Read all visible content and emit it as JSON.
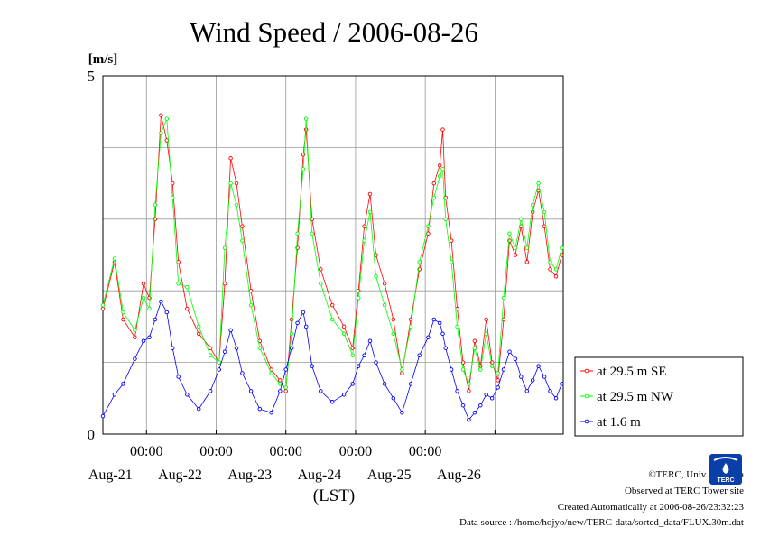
{
  "chart_data": {
    "type": "line",
    "title": "Wind Speed / 2006-08-26",
    "ylabel": "[m/s]",
    "xlabel": "(LST)",
    "ylim": [
      0,
      5
    ],
    "ytick_labels": [
      "0",
      "5"
    ],
    "xlim": [
      "2006-08-20T09:00",
      "2006-08-26T23:30"
    ],
    "x_ticks": [
      {
        "time": "2006-08-21T00:00",
        "label": "00:00",
        "date": "Aug-21"
      },
      {
        "time": "2006-08-22T00:00",
        "label": "00:00",
        "date": "Aug-22"
      },
      {
        "time": "2006-08-23T00:00",
        "label": "00:00",
        "date": "Aug-23"
      },
      {
        "time": "2006-08-24T00:00",
        "label": "00:00",
        "date": "Aug-24"
      },
      {
        "time": "2006-08-25T00:00",
        "label": "00:00",
        "date": "Aug-25"
      },
      {
        "time": "2006-08-26T00:00",
        "label": "",
        "date": "Aug-26"
      }
    ],
    "grid": true,
    "legend_position": "right, lower",
    "series": [
      {
        "name": "at 29.5 m SE",
        "color": "#ff0000",
        "points": [
          [
            "2006-08-20T09:00",
            1.75
          ],
          [
            "2006-08-20T13:00",
            2.4
          ],
          [
            "2006-08-20T16:00",
            1.6
          ],
          [
            "2006-08-20T20:00",
            1.35
          ],
          [
            "2006-08-20T23:00",
            2.1
          ],
          [
            "2006-08-21T01:00",
            1.9
          ],
          [
            "2006-08-21T03:00",
            3.0
          ],
          [
            "2006-08-21T05:00",
            4.45
          ],
          [
            "2006-08-21T07:00",
            4.1
          ],
          [
            "2006-08-21T09:00",
            3.5
          ],
          [
            "2006-08-21T11:00",
            2.4
          ],
          [
            "2006-08-21T14:00",
            1.75
          ],
          [
            "2006-08-21T18:00",
            1.4
          ],
          [
            "2006-08-21T22:00",
            1.2
          ],
          [
            "2006-08-22T01:00",
            1.0
          ],
          [
            "2006-08-22T03:00",
            2.1
          ],
          [
            "2006-08-22T05:00",
            3.85
          ],
          [
            "2006-08-22T07:00",
            3.5
          ],
          [
            "2006-08-22T09:00",
            2.9
          ],
          [
            "2006-08-22T12:00",
            2.0
          ],
          [
            "2006-08-22T15:00",
            1.3
          ],
          [
            "2006-08-22T19:00",
            0.9
          ],
          [
            "2006-08-22T22:00",
            0.75
          ],
          [
            "2006-08-23T00:00",
            0.6
          ],
          [
            "2006-08-23T02:00",
            1.6
          ],
          [
            "2006-08-23T04:00",
            2.6
          ],
          [
            "2006-08-23T06:00",
            3.9
          ],
          [
            "2006-08-23T07:00",
            4.25
          ],
          [
            "2006-08-23T09:00",
            3.0
          ],
          [
            "2006-08-23T12:00",
            2.3
          ],
          [
            "2006-08-23T16:00",
            1.8
          ],
          [
            "2006-08-23T20:00",
            1.5
          ],
          [
            "2006-08-23T23:00",
            1.2
          ],
          [
            "2006-08-24T01:00",
            2.0
          ],
          [
            "2006-08-24T03:00",
            2.9
          ],
          [
            "2006-08-24T05:00",
            3.35
          ],
          [
            "2006-08-24T07:00",
            2.5
          ],
          [
            "2006-08-24T10:00",
            2.1
          ],
          [
            "2006-08-24T13:00",
            1.6
          ],
          [
            "2006-08-24T16:00",
            0.85
          ],
          [
            "2006-08-24T19:00",
            1.6
          ],
          [
            "2006-08-24T22:00",
            2.3
          ],
          [
            "2006-08-25T01:00",
            2.8
          ],
          [
            "2006-08-25T03:00",
            3.5
          ],
          [
            "2006-08-25T05:00",
            3.75
          ],
          [
            "2006-08-25T06:00",
            4.25
          ],
          [
            "2006-08-25T07:00",
            3.3
          ],
          [
            "2006-08-25T09:00",
            2.7
          ],
          [
            "2006-08-25T11:00",
            1.75
          ],
          [
            "2006-08-25T13:00",
            1.0
          ],
          [
            "2006-08-25T15:00",
            0.6
          ],
          [
            "2006-08-25T17:00",
            1.3
          ],
          [
            "2006-08-25T19:00",
            0.95
          ],
          [
            "2006-08-25T21:00",
            1.6
          ],
          [
            "2006-08-25T23:00",
            1.0
          ],
          [
            "2006-08-26T01:00",
            0.75
          ],
          [
            "2006-08-26T03:00",
            1.6
          ],
          [
            "2006-08-26T05:00",
            2.7
          ],
          [
            "2006-08-26T07:00",
            2.5
          ],
          [
            "2006-08-26T09:00",
            2.9
          ],
          [
            "2006-08-26T11:00",
            2.4
          ],
          [
            "2006-08-26T13:00",
            3.1
          ],
          [
            "2006-08-26T15:00",
            3.4
          ],
          [
            "2006-08-26T17:00",
            2.9
          ],
          [
            "2006-08-26T19:00",
            2.3
          ],
          [
            "2006-08-26T21:00",
            2.2
          ],
          [
            "2006-08-26T23:00",
            2.5
          ]
        ]
      },
      {
        "name": "at 29.5 m NW",
        "color": "#00ff00",
        "points": [
          [
            "2006-08-20T09:00",
            1.8
          ],
          [
            "2006-08-20T13:00",
            2.45
          ],
          [
            "2006-08-20T16:00",
            1.7
          ],
          [
            "2006-08-20T20:00",
            1.45
          ],
          [
            "2006-08-20T23:00",
            1.9
          ],
          [
            "2006-08-21T01:00",
            1.75
          ],
          [
            "2006-08-21T03:00",
            3.2
          ],
          [
            "2006-08-21T05:00",
            4.2
          ],
          [
            "2006-08-21T07:00",
            4.4
          ],
          [
            "2006-08-21T09:00",
            3.3
          ],
          [
            "2006-08-21T11:00",
            2.1
          ],
          [
            "2006-08-21T14:00",
            2.05
          ],
          [
            "2006-08-21T18:00",
            1.5
          ],
          [
            "2006-08-21T22:00",
            1.1
          ],
          [
            "2006-08-22T01:00",
            1.0
          ],
          [
            "2006-08-22T03:00",
            2.6
          ],
          [
            "2006-08-22T05:00",
            3.5
          ],
          [
            "2006-08-22T07:00",
            3.2
          ],
          [
            "2006-08-22T09:00",
            2.7
          ],
          [
            "2006-08-22T12:00",
            1.8
          ],
          [
            "2006-08-22T15:00",
            1.2
          ],
          [
            "2006-08-22T19:00",
            0.85
          ],
          [
            "2006-08-22T22:00",
            0.7
          ],
          [
            "2006-08-23T00:00",
            0.65
          ],
          [
            "2006-08-23T02:00",
            1.4
          ],
          [
            "2006-08-23T04:00",
            2.8
          ],
          [
            "2006-08-23T06:00",
            3.7
          ],
          [
            "2006-08-23T07:00",
            4.4
          ],
          [
            "2006-08-23T09:00",
            2.8
          ],
          [
            "2006-08-23T12:00",
            2.1
          ],
          [
            "2006-08-23T16:00",
            1.6
          ],
          [
            "2006-08-23T20:00",
            1.4
          ],
          [
            "2006-08-23T23:00",
            1.1
          ],
          [
            "2006-08-24T01:00",
            1.9
          ],
          [
            "2006-08-24T03:00",
            2.7
          ],
          [
            "2006-08-24T05:00",
            3.1
          ],
          [
            "2006-08-24T07:00",
            2.2
          ],
          [
            "2006-08-24T10:00",
            1.8
          ],
          [
            "2006-08-24T13:00",
            1.4
          ],
          [
            "2006-08-24T16:00",
            0.9
          ],
          [
            "2006-08-24T19:00",
            1.5
          ],
          [
            "2006-08-24T22:00",
            2.4
          ],
          [
            "2006-08-25T01:00",
            2.9
          ],
          [
            "2006-08-25T03:00",
            3.3
          ],
          [
            "2006-08-25T05:00",
            3.6
          ],
          [
            "2006-08-25T06:00",
            3.7
          ],
          [
            "2006-08-25T07:00",
            3.0
          ],
          [
            "2006-08-25T09:00",
            2.4
          ],
          [
            "2006-08-25T11:00",
            1.5
          ],
          [
            "2006-08-25T13:00",
            0.9
          ],
          [
            "2006-08-25T15:00",
            0.7
          ],
          [
            "2006-08-25T17:00",
            1.2
          ],
          [
            "2006-08-25T19:00",
            0.9
          ],
          [
            "2006-08-25T21:00",
            1.4
          ],
          [
            "2006-08-25T23:00",
            0.95
          ],
          [
            "2006-08-26T01:00",
            0.85
          ],
          [
            "2006-08-26T03:00",
            1.9
          ],
          [
            "2006-08-26T05:00",
            2.8
          ],
          [
            "2006-08-26T07:00",
            2.6
          ],
          [
            "2006-08-26T09:00",
            3.0
          ],
          [
            "2006-08-26T11:00",
            2.6
          ],
          [
            "2006-08-26T13:00",
            3.2
          ],
          [
            "2006-08-26T15:00",
            3.5
          ],
          [
            "2006-08-26T17:00",
            3.1
          ],
          [
            "2006-08-26T19:00",
            2.4
          ],
          [
            "2006-08-26T21:00",
            2.3
          ],
          [
            "2006-08-26T23:00",
            2.6
          ]
        ]
      },
      {
        "name": "at 1.6 m",
        "color": "#0000ff",
        "points": [
          [
            "2006-08-20T09:00",
            0.25
          ],
          [
            "2006-08-20T13:00",
            0.55
          ],
          [
            "2006-08-20T16:00",
            0.7
          ],
          [
            "2006-08-20T20:00",
            1.05
          ],
          [
            "2006-08-20T23:00",
            1.3
          ],
          [
            "2006-08-21T01:00",
            1.35
          ],
          [
            "2006-08-21T03:00",
            1.6
          ],
          [
            "2006-08-21T05:00",
            1.85
          ],
          [
            "2006-08-21T07:00",
            1.7
          ],
          [
            "2006-08-21T09:00",
            1.2
          ],
          [
            "2006-08-21T11:00",
            0.8
          ],
          [
            "2006-08-21T14:00",
            0.55
          ],
          [
            "2006-08-21T18:00",
            0.35
          ],
          [
            "2006-08-21T22:00",
            0.6
          ],
          [
            "2006-08-22T01:00",
            0.9
          ],
          [
            "2006-08-22T03:00",
            1.15
          ],
          [
            "2006-08-22T05:00",
            1.45
          ],
          [
            "2006-08-22T07:00",
            1.2
          ],
          [
            "2006-08-22T09:00",
            0.85
          ],
          [
            "2006-08-22T12:00",
            0.6
          ],
          [
            "2006-08-22T15:00",
            0.35
          ],
          [
            "2006-08-22T19:00",
            0.3
          ],
          [
            "2006-08-22T22:00",
            0.6
          ],
          [
            "2006-08-23T00:00",
            0.9
          ],
          [
            "2006-08-23T02:00",
            1.2
          ],
          [
            "2006-08-23T04:00",
            1.55
          ],
          [
            "2006-08-23T06:00",
            1.7
          ],
          [
            "2006-08-23T07:00",
            1.5
          ],
          [
            "2006-08-23T09:00",
            0.95
          ],
          [
            "2006-08-23T12:00",
            0.6
          ],
          [
            "2006-08-23T16:00",
            0.45
          ],
          [
            "2006-08-23T20:00",
            0.55
          ],
          [
            "2006-08-23T23:00",
            0.7
          ],
          [
            "2006-08-24T01:00",
            0.95
          ],
          [
            "2006-08-24T03:00",
            1.1
          ],
          [
            "2006-08-24T05:00",
            1.3
          ],
          [
            "2006-08-24T07:00",
            1.0
          ],
          [
            "2006-08-24T10:00",
            0.7
          ],
          [
            "2006-08-24T13:00",
            0.5
          ],
          [
            "2006-08-24T16:00",
            0.3
          ],
          [
            "2006-08-24T19:00",
            0.7
          ],
          [
            "2006-08-24T22:00",
            1.1
          ],
          [
            "2006-08-25T01:00",
            1.35
          ],
          [
            "2006-08-25T03:00",
            1.6
          ],
          [
            "2006-08-25T05:00",
            1.55
          ],
          [
            "2006-08-25T06:00",
            1.4
          ],
          [
            "2006-08-25T07:00",
            1.2
          ],
          [
            "2006-08-25T09:00",
            0.9
          ],
          [
            "2006-08-25T11:00",
            0.6
          ],
          [
            "2006-08-25T13:00",
            0.4
          ],
          [
            "2006-08-25T15:00",
            0.2
          ],
          [
            "2006-08-25T17:00",
            0.3
          ],
          [
            "2006-08-25T19:00",
            0.4
          ],
          [
            "2006-08-25T21:00",
            0.55
          ],
          [
            "2006-08-25T23:00",
            0.5
          ],
          [
            "2006-08-26T01:00",
            0.65
          ],
          [
            "2006-08-26T03:00",
            0.9
          ],
          [
            "2006-08-26T05:00",
            1.15
          ],
          [
            "2006-08-26T07:00",
            1.05
          ],
          [
            "2006-08-26T09:00",
            0.8
          ],
          [
            "2006-08-26T11:00",
            0.6
          ],
          [
            "2006-08-26T13:00",
            0.75
          ],
          [
            "2006-08-26T15:00",
            0.95
          ],
          [
            "2006-08-26T17:00",
            0.8
          ],
          [
            "2006-08-26T19:00",
            0.6
          ],
          [
            "2006-08-26T21:00",
            0.5
          ],
          [
            "2006-08-26T23:00",
            0.7
          ]
        ]
      }
    ]
  },
  "credits": {
    "copyright": "©TERC, Univ. Tsukuba",
    "observed": "Observed at TERC Tower site",
    "created": "Created Automatically at 2006-08-26/23:32:23",
    "source": "Data source : /home/hojyo/new/TERC-data/sorted_data/FLUX.30m.dat"
  },
  "logo": {
    "text": "TERC",
    "color": "#0b3fa8"
  }
}
